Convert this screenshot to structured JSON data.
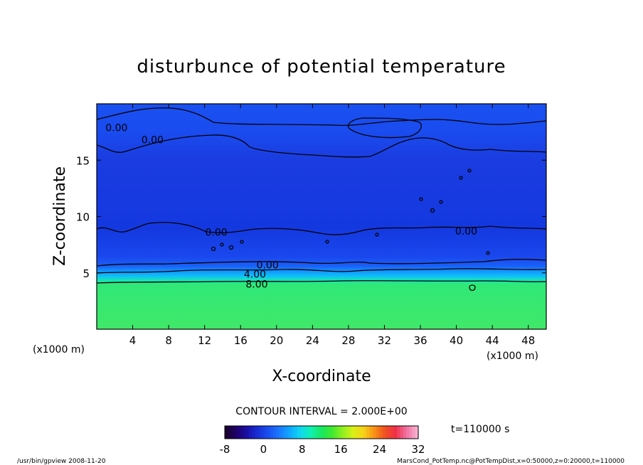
{
  "chart_data": {
    "type": "heatmap",
    "title": "disturbunce of potential temperature",
    "xlabel": "X-coordinate",
    "ylabel": "Z-coordinate",
    "x_unit_left": "(x1000 m)",
    "x_unit_right": "(x1000 m)",
    "xlim": [
      0,
      50
    ],
    "ylim": [
      0,
      20
    ],
    "x_ticks": [
      4,
      8,
      12,
      16,
      20,
      24,
      28,
      32,
      36,
      40,
      44,
      48
    ],
    "y_ticks": [
      5,
      10,
      15
    ],
    "contour_labels": [
      {
        "text": "0.00",
        "x": 2.2,
        "z": 17.9
      },
      {
        "text": "0.00",
        "x": 6.2,
        "z": 16.8
      },
      {
        "text": "0.00",
        "x": 13.3,
        "z": 8.6
      },
      {
        "text": "0.00",
        "x": 41.1,
        "z": 8.7
      },
      {
        "text": "0.00",
        "x": 19.0,
        "z": 5.7
      },
      {
        "text": "4.00",
        "x": 17.6,
        "z": 4.9
      },
      {
        "text": "8.00",
        "x": 17.8,
        "z": 4.0
      }
    ],
    "contour_interval_label": "CONTOUR INTERVAL = 2.000E+00",
    "colorbar": {
      "min": -8,
      "max": 32,
      "tick_labels": [
        "-8",
        "0",
        "8",
        "16",
        "24",
        "32"
      ],
      "colors": [
        "#1a0030",
        "#20006e",
        "#1a10a8",
        "#1830d8",
        "#1a50f0",
        "#1a78ff",
        "#10a8ff",
        "#10d8f0",
        "#10f0b0",
        "#18e860",
        "#40e830",
        "#90f020",
        "#d8f018",
        "#f8d018",
        "#f89018",
        "#f05020",
        "#f03048",
        "#f070a0",
        "#f8b0d0"
      ]
    },
    "field_colors": {
      "upper": "#1a4cf0",
      "mid": "#1438e0",
      "band_low": "#18a8ff",
      "surface": "#3ae86a"
    },
    "time_label": "t=110000 s"
  },
  "footer": {
    "left": "/usr/bin/gpview   2008-11-20",
    "right": "MarsCond_PotTemp.nc@PotTempDist,x=0:50000,z=0:20000,t=110000"
  }
}
